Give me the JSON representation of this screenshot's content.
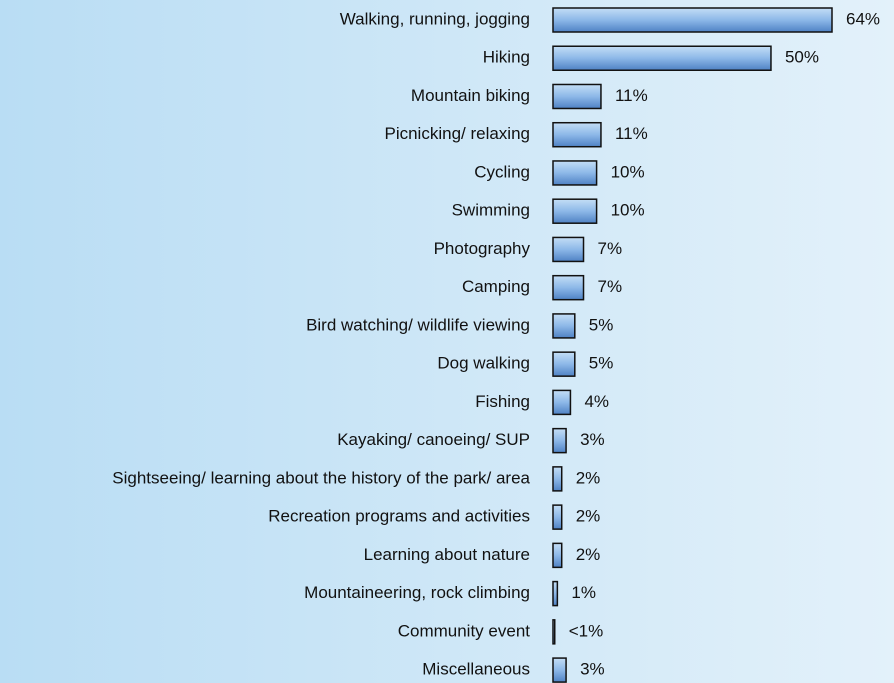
{
  "chart_data": {
    "type": "bar",
    "orientation": "horizontal",
    "categories": [
      "Walking, running, jogging",
      "Hiking",
      "Mountain biking",
      "Picnicking/ relaxing",
      "Cycling",
      "Swimming",
      "Photography",
      "Camping",
      "Bird watching/ wildlife viewing",
      "Dog walking",
      "Fishing",
      "Kayaking/ canoeing/ SUP",
      "Sightseeing/ learning about the history of the park/ area",
      "Recreation programs and activities",
      "Learning about nature",
      "Mountaineering, rock climbing",
      "Community event",
      "Miscellaneous"
    ],
    "values": [
      64,
      50,
      11,
      11,
      10,
      10,
      7,
      7,
      5,
      5,
      4,
      3,
      2,
      2,
      2,
      1,
      0.4,
      3
    ],
    "value_labels": [
      "64%",
      "50%",
      "11%",
      "11%",
      "10%",
      "10%",
      "7%",
      "7%",
      "5%",
      "5%",
      "4%",
      "3%",
      "2%",
      "2%",
      "2%",
      "1%",
      "<1%",
      "3%"
    ],
    "color": "#6f9fd8"
  }
}
